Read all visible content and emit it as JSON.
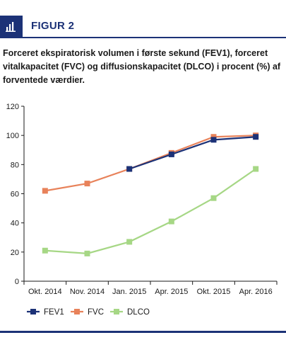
{
  "header": {
    "icon": "bar-chart-icon",
    "title": "FIGUR 2",
    "accent_color": "#1c3277"
  },
  "caption": "Forceret ekspiratorisk volumen i første sekund (FEV1), forceret vitalkapacitet (FVC) og diffusionskapacitet (DLCO) i procent (%) af forventede værdier.",
  "chart_data": {
    "type": "line",
    "title": "",
    "xlabel": "",
    "ylabel": "",
    "categories": [
      "Okt. 2014",
      "Nov. 2014",
      "Jan. 2015",
      "Apr. 2015",
      "Okt. 2015",
      "Apr. 2016"
    ],
    "ylim": [
      0,
      120
    ],
    "yticks": [
      0,
      20,
      40,
      60,
      80,
      100,
      120
    ],
    "grid": false,
    "legend_position": "bottom",
    "series": [
      {
        "name": "FEV1",
        "color": "#1c3277",
        "values": [
          null,
          null,
          77,
          87,
          97,
          99
        ]
      },
      {
        "name": "FVC",
        "color": "#e8825a",
        "values": [
          62,
          67,
          77,
          88,
          99,
          100
        ]
      },
      {
        "name": "DLCO",
        "color": "#a6d785",
        "values": [
          21,
          19,
          27,
          41,
          57,
          77
        ]
      }
    ]
  }
}
